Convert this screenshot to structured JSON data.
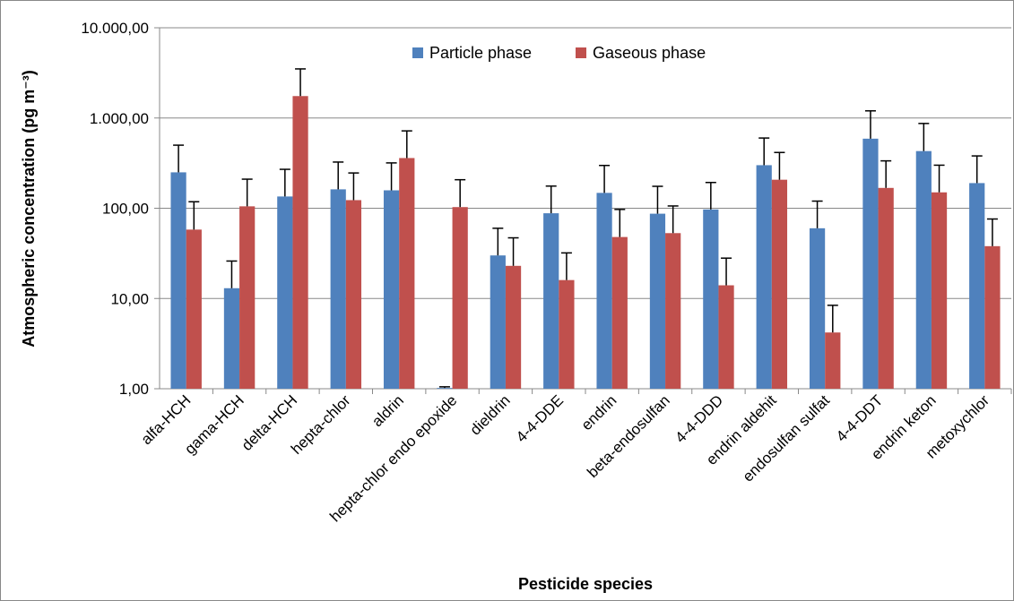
{
  "chart_data": {
    "type": "bar",
    "log_scale": true,
    "grid": true,
    "legend_position": "top",
    "x_label": "Pesticide species",
    "y_label": "Atmospheric concentration (pg m⁻³)",
    "categories": [
      "alfa-HCH",
      "gama-HCH",
      "delta-HCH",
      "hepta-chlor",
      "aldrin",
      "hepta-chlor endo epoxide",
      "dieldrin",
      "4-4-DDE",
      "endrin",
      "beta-endosulfan",
      "4-4-DDD",
      "endrin aldehit",
      "endosulfan sulfat",
      "4-4-DDT",
      "endrin keton",
      "metoxychlor"
    ],
    "series": [
      {
        "name": "Particle phase",
        "color": "#4f81bd",
        "values": [
          250,
          13,
          135,
          162,
          158,
          1.02,
          30,
          88,
          148,
          87,
          97,
          300,
          60,
          590,
          430,
          190
        ],
        "errors": [
          250,
          13,
          135,
          163,
          160,
          0.03,
          30,
          88,
          150,
          88,
          96,
          300,
          60,
          610,
          440,
          190
        ]
      },
      {
        "name": "Gaseous phase",
        "color": "#c0504d",
        "values": [
          58,
          105,
          1750,
          123,
          360,
          103,
          23,
          16,
          48,
          53,
          14,
          207,
          4.2,
          168,
          150,
          38
        ],
        "errors": [
          60,
          105,
          1750,
          123,
          360,
          104,
          24,
          16,
          49,
          53,
          14,
          208,
          4.2,
          167,
          150,
          38
        ]
      }
    ],
    "ylim": [
      1,
      10000
    ],
    "yticks": [
      {
        "value": 1,
        "label": "1,00"
      },
      {
        "value": 10,
        "label": "10,00"
      },
      {
        "value": 100,
        "label": "100,00"
      },
      {
        "value": 1000,
        "label": "1.000,00"
      },
      {
        "value": 10000,
        "label": "10.000,00"
      }
    ]
  }
}
